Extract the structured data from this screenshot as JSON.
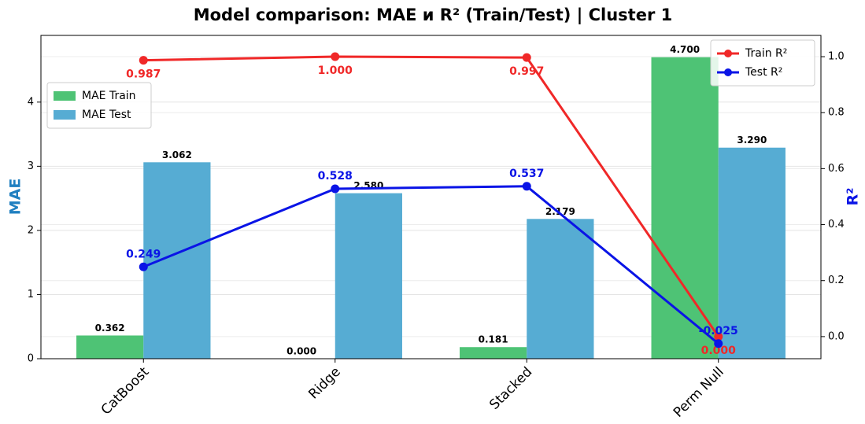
{
  "chart_data": {
    "type": "bar",
    "title": "Model comparison: MAE и R² (Train/Test) | Cluster 1",
    "ylabel": "MAE",
    "y2label": "R²",
    "categories": [
      "CatBoost",
      "Ridge",
      "Stacked",
      "Perm Null"
    ],
    "series": [
      {
        "name": "MAE Train",
        "type": "bar",
        "color": "#4ec375",
        "values": [
          0.362,
          0,
          0.181,
          4.7
        ],
        "value_labels": [
          "0.362",
          "0.000",
          "0.181",
          "4.700"
        ]
      },
      {
        "name": "MAE Test",
        "type": "bar",
        "color": "#56acd3",
        "values": [
          3.062,
          2.58,
          2.179,
          3.29
        ],
        "value_labels": [
          "3.062",
          "2.580",
          "2.179",
          "3.290"
        ]
      },
      {
        "name": "Train R²",
        "type": "line",
        "axis": "y2",
        "color": "#f02828",
        "values": [
          0.987,
          1,
          0.997,
          0
        ],
        "value_labels": [
          "0.987",
          "1.000",
          "0.997",
          "0.000"
        ]
      },
      {
        "name": "Test R²",
        "type": "line",
        "axis": "y2",
        "color": "#0a14e6",
        "values": [
          0.249,
          0.528,
          0.537,
          -0.025
        ],
        "value_labels": [
          "0.249",
          "0.528",
          "0.537",
          "-0.025"
        ]
      }
    ],
    "ylim": [
      0,
      5.04
    ],
    "yticks": [
      0,
      1,
      2,
      3,
      4
    ],
    "y2lim": [
      -0.079,
      1.076
    ],
    "y2ticks": [
      {
        "value": 0,
        "label": "0.0"
      },
      0.2,
      0.4,
      0.6,
      0.8,
      {
        "value": 1,
        "label": "1.0"
      }
    ],
    "grid": true,
    "legend": "upper left",
    "legend2": "upper right"
  }
}
